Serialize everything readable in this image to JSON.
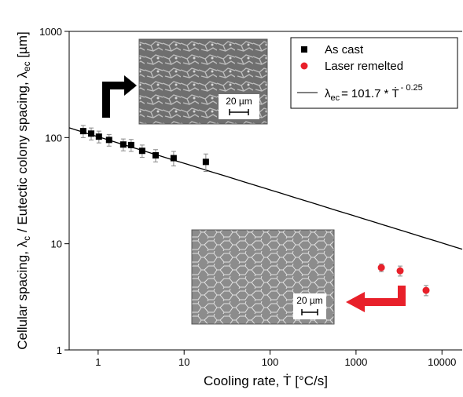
{
  "chart_data": {
    "type": "scatter",
    "x_label": "Cooling rate, Ṫ [°C/s]",
    "y_label_parts": [
      "Cellular spacing, λ",
      "c",
      " / Eutectic colony spacing, λ",
      "ec",
      " [µm]"
    ],
    "xlim": [
      0.46,
      17200
    ],
    "ylim": [
      1,
      1000
    ],
    "log_x": true,
    "log_y": true,
    "xticks": [
      1,
      10,
      100,
      1000,
      10000
    ],
    "yticks": [
      1,
      10,
      100,
      1000
    ],
    "series": [
      {
        "name": "As cast",
        "color": "#000000",
        "marker": "square",
        "x": [
          0.67,
          0.83,
          1.02,
          1.34,
          1.96,
          2.42,
          3.25,
          4.66,
          7.55,
          17.9
        ],
        "values": [
          115,
          109,
          102,
          95,
          86,
          85,
          75,
          68,
          64,
          59
        ],
        "errors": [
          15,
          14,
          13,
          12,
          11,
          11,
          10,
          9,
          10,
          11
        ]
      },
      {
        "name": "Laser remelted",
        "color": "#e8202a",
        "marker": "circle",
        "x": [
          1970,
          3260,
          6530
        ],
        "values": [
          5.96,
          5.56,
          3.64
        ],
        "errors": [
          0.5,
          0.6,
          0.4
        ]
      }
    ],
    "fit": {
      "symbol": "λ",
      "subscript": "ec",
      "equals": "=",
      "coefficient": 101.7,
      "operator": "* Ṫ",
      "exponent": {
        "value": -0.25,
        "label": "- 0.25"
      },
      "color": "#000000"
    },
    "insets": [
      {
        "scale_label": "20 µm"
      },
      {
        "scale_label": "20 µm"
      }
    ]
  }
}
